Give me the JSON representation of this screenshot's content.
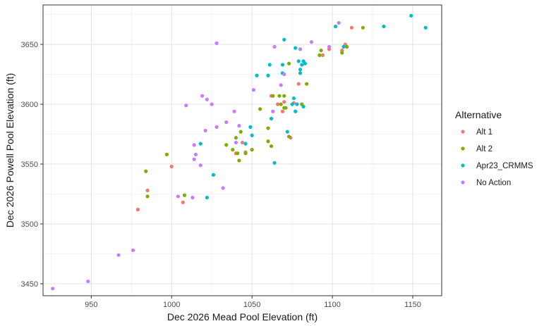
{
  "chart_data": {
    "type": "scatter",
    "title": "",
    "xlabel": "Dec 2026 Mead Pool Elevation (ft)",
    "ylabel": "Dec 2026 Powell Pool Elevation (ft)",
    "xlim": [
      920,
      1168
    ],
    "ylim": [
      3440,
      3683
    ],
    "x_ticks": [
      950,
      1000,
      1050,
      1100,
      1150
    ],
    "y_ticks": [
      3450,
      3500,
      3550,
      3600,
      3650
    ],
    "grid": true,
    "legend": {
      "title": "Alternative",
      "position": "right"
    },
    "series": [
      {
        "name": "Alt 1",
        "color": "#F8766D",
        "points": [
          [
            979,
            3512
          ],
          [
            985,
            3528
          ],
          [
            1000,
            3548
          ],
          [
            1007,
            3518
          ],
          [
            1040,
            3559
          ],
          [
            1044,
            3568
          ],
          [
            1046,
            3560
          ],
          [
            1062,
            3607
          ],
          [
            1066,
            3600
          ],
          [
            1069,
            3594
          ],
          [
            1070,
            3602
          ],
          [
            1074,
            3572
          ],
          [
            1076,
            3601
          ],
          [
            1079,
            3617
          ],
          [
            1081,
            3600
          ],
          [
            1094,
            3641
          ],
          [
            1098,
            3646
          ],
          [
            1106,
            3645
          ],
          [
            1108,
            3650
          ],
          [
            1112,
            3664
          ]
        ]
      },
      {
        "name": "Alt 2",
        "color": "#7CAE00",
        "points": [
          [
            984,
            3544
          ],
          [
            985,
            3523
          ],
          [
            997,
            3558
          ],
          [
            1008,
            3524
          ],
          [
            1034,
            3566
          ],
          [
            1038,
            3562
          ],
          [
            1040,
            3572
          ],
          [
            1041,
            3559
          ],
          [
            1042,
            3553
          ],
          [
            1043,
            3577
          ],
          [
            1046,
            3559
          ],
          [
            1050,
            3562
          ],
          [
            1055,
            3596
          ],
          [
            1060,
            3580
          ],
          [
            1060,
            3569
          ],
          [
            1062,
            3565
          ],
          [
            1063,
            3607
          ],
          [
            1067,
            3607
          ],
          [
            1068,
            3600
          ],
          [
            1070,
            3607
          ],
          [
            1070,
            3597
          ],
          [
            1071,
            3597
          ],
          [
            1073,
            3573
          ],
          [
            1073,
            3634
          ],
          [
            1081,
            3600
          ],
          [
            1084,
            3617
          ],
          [
            1092,
            3641
          ],
          [
            1093,
            3645
          ],
          [
            1106,
            3643
          ],
          [
            1109,
            3648
          ],
          [
            1119,
            3664
          ]
        ]
      },
      {
        "name": "Apr23_CRMMS",
        "color": "#00BFC4",
        "points": [
          [
            1018,
            3567
          ],
          [
            1022,
            3522
          ],
          [
            1026,
            3541
          ],
          [
            1046,
            3567
          ],
          [
            1049,
            3581
          ],
          [
            1050,
            3574
          ],
          [
            1053,
            3624
          ],
          [
            1060,
            3624
          ],
          [
            1061,
            3633
          ],
          [
            1062,
            3588
          ],
          [
            1064,
            3551
          ],
          [
            1069,
            3626
          ],
          [
            1069,
            3633
          ],
          [
            1070,
            3654
          ],
          [
            1072,
            3577
          ],
          [
            1075,
            3600
          ],
          [
            1076,
            3605
          ],
          [
            1077,
            3594
          ],
          [
            1077,
            3647
          ],
          [
            1078,
            3600
          ],
          [
            1079,
            3636
          ],
          [
            1080,
            3626
          ],
          [
            1080,
            3629
          ],
          [
            1081,
            3633
          ],
          [
            1082,
            3598
          ],
          [
            1082,
            3636
          ],
          [
            1083,
            3634
          ],
          [
            1102,
            3665
          ],
          [
            1107,
            3648
          ],
          [
            1132,
            3665
          ],
          [
            1149,
            3674
          ],
          [
            1158,
            3664
          ]
        ]
      },
      {
        "name": "No Action",
        "color": "#C77CFF",
        "points": [
          [
            926,
            3446
          ],
          [
            948,
            3452
          ],
          [
            967,
            3474
          ],
          [
            976,
            3478
          ],
          [
            1004,
            3523
          ],
          [
            1009,
            3599
          ],
          [
            1013,
            3522
          ],
          [
            1014,
            3554
          ],
          [
            1014,
            3566
          ],
          [
            1015,
            3558
          ],
          [
            1018,
            3549
          ],
          [
            1019,
            3607
          ],
          [
            1021,
            3578
          ],
          [
            1022,
            3604
          ],
          [
            1025,
            3600
          ],
          [
            1028,
            3581
          ],
          [
            1028,
            3651
          ],
          [
            1032,
            3530
          ],
          [
            1034,
            3585
          ],
          [
            1039,
            3594
          ],
          [
            1040,
            3568
          ],
          [
            1042,
            3582
          ],
          [
            1051,
            3612
          ],
          [
            1063,
            3594
          ],
          [
            1064,
            3648
          ],
          [
            1068,
            3616
          ],
          [
            1070,
            3625
          ],
          [
            1080,
            3646
          ],
          [
            1087,
            3652
          ],
          [
            1098,
            3648
          ],
          [
            1104,
            3668
          ]
        ]
      }
    ]
  }
}
